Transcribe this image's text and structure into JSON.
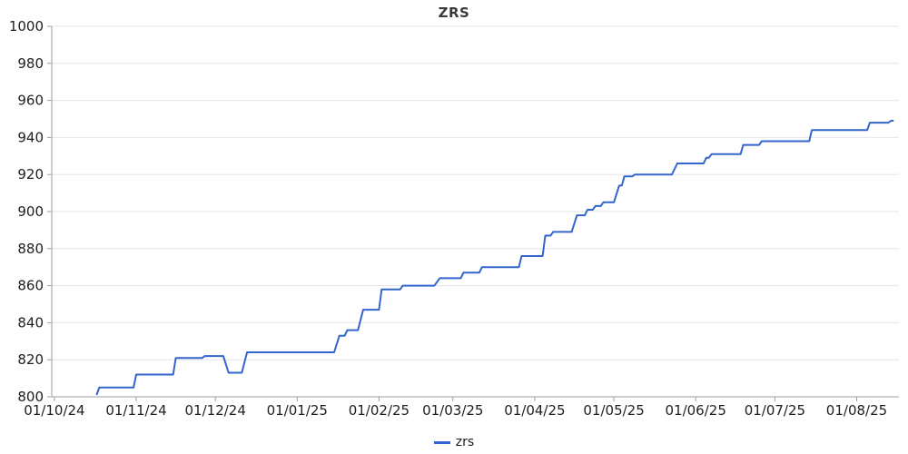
{
  "title": "ZRS",
  "legend": {
    "items": [
      {
        "label": "zrs",
        "color": "#3366cc"
      }
    ]
  },
  "colors": {
    "background": "#ffffff",
    "title": "#3a3a3a",
    "grid": "#e6e6e6",
    "axis": "#9e9e9e",
    "tick_label": "#1f1f1f",
    "series": "#3366cc"
  },
  "chart_data": {
    "type": "line",
    "title": "ZRS",
    "grid": "horizontal-only",
    "legend_position": "bottom",
    "y_axis": {
      "min": 800,
      "max": 1000,
      "tick_step": 20,
      "ticks": [
        {
          "value": 800,
          "label": "800"
        },
        {
          "value": 820,
          "label": "820"
        },
        {
          "value": 840,
          "label": "840"
        },
        {
          "value": 860,
          "label": "860"
        },
        {
          "value": 880,
          "label": "880"
        },
        {
          "value": 900,
          "label": "900"
        },
        {
          "value": 920,
          "label": "920"
        },
        {
          "value": 940,
          "label": "940"
        },
        {
          "value": 960,
          "label": "960"
        },
        {
          "value": 980,
          "label": "980"
        },
        {
          "value": 1000,
          "label": "1000"
        }
      ]
    },
    "x_axis": {
      "type": "date",
      "min": "2024-09-30",
      "max": "2025-08-17",
      "ticks": [
        {
          "date": "2024-10-01",
          "label": "01/10/24"
        },
        {
          "date": "2024-11-01",
          "label": "01/11/24"
        },
        {
          "date": "2024-12-01",
          "label": "01/12/24"
        },
        {
          "date": "2025-01-01",
          "label": "01/01/25"
        },
        {
          "date": "2025-02-01",
          "label": "01/02/25"
        },
        {
          "date": "2025-03-01",
          "label": "01/03/25"
        },
        {
          "date": "2025-04-01",
          "label": "01/04/25"
        },
        {
          "date": "2025-05-01",
          "label": "01/05/25"
        },
        {
          "date": "2025-06-01",
          "label": "01/06/25"
        },
        {
          "date": "2025-07-01",
          "label": "01/07/25"
        },
        {
          "date": "2025-08-01",
          "label": "01/08/25"
        }
      ]
    },
    "series": [
      {
        "name": "zrs",
        "color": "#3366cc",
        "points": [
          [
            "2024-10-17",
            801
          ],
          [
            "2024-10-18",
            805
          ],
          [
            "2024-10-31",
            805
          ],
          [
            "2024-11-01",
            812
          ],
          [
            "2024-11-15",
            812
          ],
          [
            "2024-11-16",
            821
          ],
          [
            "2024-11-26",
            821
          ],
          [
            "2024-11-27",
            822
          ],
          [
            "2024-12-04",
            822
          ],
          [
            "2024-12-06",
            813
          ],
          [
            "2024-12-11",
            813
          ],
          [
            "2024-12-13",
            824
          ],
          [
            "2025-01-15",
            824
          ],
          [
            "2025-01-17",
            833
          ],
          [
            "2025-01-19",
            833
          ],
          [
            "2025-01-20",
            836
          ],
          [
            "2025-01-24",
            836
          ],
          [
            "2025-01-26",
            847
          ],
          [
            "2025-02-01",
            847
          ],
          [
            "2025-02-02",
            858
          ],
          [
            "2025-02-09",
            858
          ],
          [
            "2025-02-10",
            860
          ],
          [
            "2025-02-22",
            860
          ],
          [
            "2025-02-24",
            864
          ],
          [
            "2025-03-04",
            864
          ],
          [
            "2025-03-05",
            867
          ],
          [
            "2025-03-11",
            867
          ],
          [
            "2025-03-12",
            870
          ],
          [
            "2025-03-26",
            870
          ],
          [
            "2025-03-27",
            876
          ],
          [
            "2025-04-04",
            876
          ],
          [
            "2025-04-05",
            887
          ],
          [
            "2025-04-07",
            887
          ],
          [
            "2025-04-08",
            889
          ],
          [
            "2025-04-15",
            889
          ],
          [
            "2025-04-17",
            898
          ],
          [
            "2025-04-20",
            898
          ],
          [
            "2025-04-21",
            901
          ],
          [
            "2025-04-23",
            901
          ],
          [
            "2025-04-24",
            903
          ],
          [
            "2025-04-26",
            903
          ],
          [
            "2025-04-27",
            905
          ],
          [
            "2025-05-01",
            905
          ],
          [
            "2025-05-03",
            914
          ],
          [
            "2025-05-04",
            914
          ],
          [
            "2025-05-05",
            919
          ],
          [
            "2025-05-08",
            919
          ],
          [
            "2025-05-09",
            920
          ],
          [
            "2025-05-23",
            920
          ],
          [
            "2025-05-25",
            926
          ],
          [
            "2025-06-04",
            926
          ],
          [
            "2025-06-05",
            929
          ],
          [
            "2025-06-06",
            929
          ],
          [
            "2025-06-07",
            931
          ],
          [
            "2025-06-18",
            931
          ],
          [
            "2025-06-19",
            936
          ],
          [
            "2025-06-25",
            936
          ],
          [
            "2025-06-26",
            938
          ],
          [
            "2025-07-14",
            938
          ],
          [
            "2025-07-15",
            944
          ],
          [
            "2025-08-05",
            944
          ],
          [
            "2025-08-06",
            948
          ],
          [
            "2025-08-13",
            948
          ],
          [
            "2025-08-14",
            949
          ],
          [
            "2025-08-15",
            949
          ]
        ]
      }
    ]
  }
}
